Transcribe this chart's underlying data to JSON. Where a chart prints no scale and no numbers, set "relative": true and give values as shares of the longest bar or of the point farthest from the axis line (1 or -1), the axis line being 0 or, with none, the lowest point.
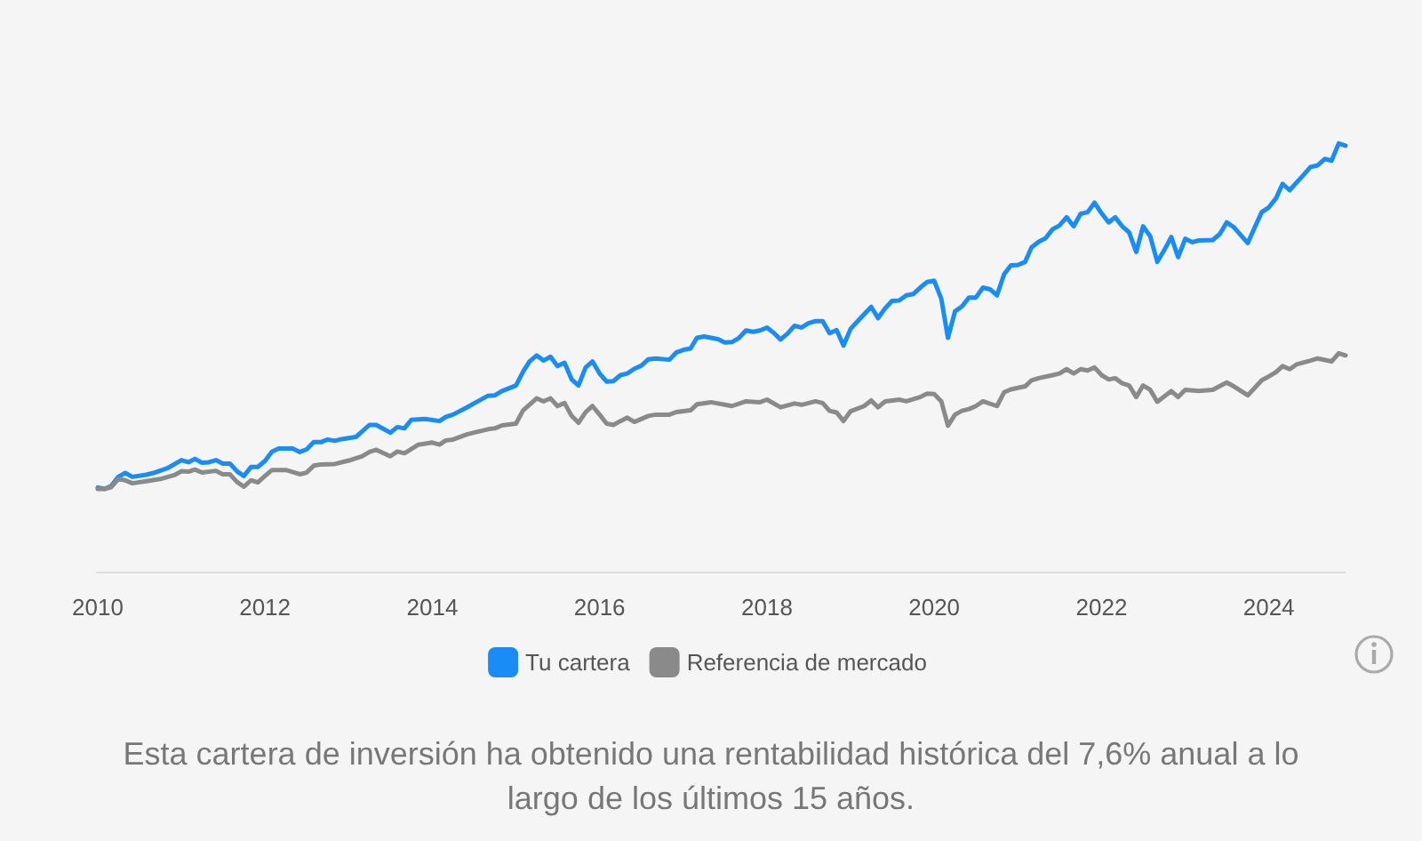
{
  "chart_data": {
    "type": "line",
    "relative": true,
    "xlim": [
      "2010-01",
      "2024-12"
    ],
    "xticks": [
      "2010",
      "2012",
      "2014",
      "2016",
      "2018",
      "2020",
      "2022",
      "2024"
    ],
    "legend": "bottom",
    "line_style": "solid",
    "annotations": [
      "Esta cartera de inversión ha obtenido una rentabilidad histórica del 7,6% anual a lo largo de los últimos 15 años."
    ],
    "series": [
      {
        "name": "Tu cartera",
        "color": "#1a8cf5",
        "x": [
          "2010-01",
          "2010-02",
          "2010-03",
          "2010-04",
          "2010-05",
          "2010-06",
          "2010-08",
          "2010-09",
          "2010-11",
          "2011-01",
          "2011-02",
          "2011-03",
          "2011-04",
          "2011-05",
          "2011-06",
          "2011-07",
          "2011-08",
          "2011-09",
          "2011-10",
          "2011-11",
          "2011-12",
          "2012-01",
          "2012-02",
          "2012-03",
          "2012-05",
          "2012-06",
          "2012-07",
          "2012-08",
          "2012-09",
          "2012-10",
          "2012-11",
          "2012-12",
          "2013-02",
          "2013-03",
          "2013-04",
          "2013-05",
          "2013-07",
          "2013-08",
          "2013-09",
          "2013-10",
          "2013-12",
          "2014-02",
          "2014-03",
          "2014-04",
          "2014-06",
          "2014-07",
          "2014-09",
          "2014-10",
          "2014-11",
          "2015-01",
          "2015-02",
          "2015-03",
          "2015-04",
          "2015-05",
          "2015-06",
          "2015-07",
          "2015-08",
          "2015-09",
          "2015-10",
          "2015-11",
          "2015-12",
          "2016-01",
          "2016-02",
          "2016-03",
          "2016-04",
          "2016-05",
          "2016-06",
          "2016-07",
          "2016-08",
          "2016-09",
          "2016-11",
          "2016-12",
          "2017-01",
          "2017-02",
          "2017-03",
          "2017-04",
          "2017-06",
          "2017-07",
          "2017-08",
          "2017-09",
          "2017-10",
          "2017-11",
          "2017-12",
          "2018-01",
          "2018-02",
          "2018-03",
          "2018-04",
          "2018-05",
          "2018-06",
          "2018-07",
          "2018-08",
          "2018-09",
          "2018-10",
          "2018-11",
          "2018-12",
          "2019-01",
          "2019-02",
          "2019-03",
          "2019-04",
          "2019-05",
          "2019-06",
          "2019-07",
          "2019-08",
          "2019-09",
          "2019-10",
          "2019-11",
          "2019-12",
          "2020-01",
          "2020-02",
          "2020-03",
          "2020-04",
          "2020-05",
          "2020-06",
          "2020-07",
          "2020-08",
          "2020-09",
          "2020-10",
          "2020-11",
          "2020-12",
          "2021-01",
          "2021-02",
          "2021-03",
          "2021-04",
          "2021-05",
          "2021-06",
          "2021-07",
          "2021-08",
          "2021-09",
          "2021-10",
          "2021-11",
          "2021-12",
          "2022-01",
          "2022-02",
          "2022-03",
          "2022-04",
          "2022-05",
          "2022-06",
          "2022-07",
          "2022-08",
          "2022-09",
          "2022-10",
          "2022-11",
          "2022-12",
          "2023-01",
          "2023-02",
          "2023-03",
          "2023-05",
          "2023-06",
          "2023-07",
          "2023-08",
          "2023-10",
          "2023-11",
          "2023-12",
          "2024-01",
          "2024-02",
          "2024-03",
          "2024-04",
          "2024-05",
          "2024-06",
          "2024-07",
          "2024-08",
          "2024-09",
          "2024-10",
          "2024-11",
          "2024-12"
        ],
        "values": [
          0.198,
          0.195,
          0.202,
          0.223,
          0.232,
          0.223,
          0.228,
          0.232,
          0.243,
          0.262,
          0.257,
          0.265,
          0.256,
          0.257,
          0.262,
          0.254,
          0.254,
          0.236,
          0.225,
          0.246,
          0.246,
          0.26,
          0.282,
          0.289,
          0.289,
          0.281,
          0.287,
          0.304,
          0.304,
          0.31,
          0.307,
          0.311,
          0.316,
          0.329,
          0.344,
          0.344,
          0.326,
          0.339,
          0.336,
          0.356,
          0.358,
          0.353,
          0.363,
          0.368,
          0.385,
          0.394,
          0.412,
          0.413,
          0.423,
          0.436,
          0.468,
          0.492,
          0.506,
          0.494,
          0.503,
          0.481,
          0.489,
          0.45,
          0.436,
          0.478,
          0.492,
          0.464,
          0.445,
          0.446,
          0.46,
          0.464,
          0.475,
          0.482,
          0.497,
          0.499,
          0.496,
          0.513,
          0.519,
          0.522,
          0.547,
          0.55,
          0.544,
          0.536,
          0.537,
          0.547,
          0.564,
          0.561,
          0.564,
          0.571,
          0.558,
          0.543,
          0.557,
          0.575,
          0.571,
          0.581,
          0.586,
          0.586,
          0.558,
          0.565,
          0.529,
          0.568,
          0.586,
          0.602,
          0.619,
          0.593,
          0.616,
          0.633,
          0.634,
          0.646,
          0.649,
          0.664,
          0.677,
          0.68,
          0.638,
          0.547,
          0.609,
          0.62,
          0.641,
          0.641,
          0.664,
          0.66,
          0.646,
          0.695,
          0.716,
          0.717,
          0.724,
          0.758,
          0.771,
          0.779,
          0.8,
          0.809,
          0.828,
          0.807,
          0.836,
          0.84,
          0.862,
          0.837,
          0.816,
          0.828,
          0.807,
          0.793,
          0.747,
          0.807,
          0.784,
          0.724,
          0.751,
          0.782,
          0.735,
          0.778,
          0.77,
          0.774,
          0.775,
          0.789,
          0.816,
          0.805,
          0.768,
          0.805,
          0.84,
          0.851,
          0.872,
          0.906,
          0.891,
          0.909,
          0.927,
          0.945,
          0.949,
          0.964,
          0.96,
          1,
          0.995
        ]
      },
      {
        "name": "Referencia de mercado",
        "color": "#8a8a8a",
        "x": [
          "2010-01",
          "2010-02",
          "2010-03",
          "2010-04",
          "2010-05",
          "2010-06",
          "2010-08",
          "2010-10",
          "2010-12",
          "2011-01",
          "2011-02",
          "2011-03",
          "2011-04",
          "2011-06",
          "2011-07",
          "2011-08",
          "2011-09",
          "2011-10",
          "2011-11",
          "2011-12",
          "2012-01",
          "2012-02",
          "2012-04",
          "2012-06",
          "2012-07",
          "2012-08",
          "2012-09",
          "2012-11",
          "2013-01",
          "2013-03",
          "2013-04",
          "2013-05",
          "2013-07",
          "2013-08",
          "2013-09",
          "2013-11",
          "2014-01",
          "2014-02",
          "2014-03",
          "2014-04",
          "2014-06",
          "2014-07",
          "2014-09",
          "2014-10",
          "2014-11",
          "2015-01",
          "2015-02",
          "2015-04",
          "2015-05",
          "2015-06",
          "2015-07",
          "2015-08",
          "2015-09",
          "2015-10",
          "2015-11",
          "2015-12",
          "2016-01",
          "2016-02",
          "2016-03",
          "2016-04",
          "2016-05",
          "2016-06",
          "2016-08",
          "2016-09",
          "2016-11",
          "2016-12",
          "2017-02",
          "2017-03",
          "2017-05",
          "2017-07",
          "2017-08",
          "2017-10",
          "2017-12",
          "2018-01",
          "2018-03",
          "2018-05",
          "2018-06",
          "2018-08",
          "2018-09",
          "2018-10",
          "2018-11",
          "2018-12",
          "2019-01",
          "2019-03",
          "2019-04",
          "2019-05",
          "2019-06",
          "2019-08",
          "2019-09",
          "2019-11",
          "2019-12",
          "2020-01",
          "2020-02",
          "2020-03",
          "2020-04",
          "2020-05",
          "2020-06",
          "2020-07",
          "2020-08",
          "2020-10",
          "2020-11",
          "2020-12",
          "2021-02",
          "2021-03",
          "2021-04",
          "2021-06",
          "2021-07",
          "2021-08",
          "2021-09",
          "2021-10",
          "2021-11",
          "2021-12",
          "2022-01",
          "2022-02",
          "2022-03",
          "2022-04",
          "2022-05",
          "2022-06",
          "2022-07",
          "2022-08",
          "2022-09",
          "2022-11",
          "2022-12",
          "2023-01",
          "2023-03",
          "2023-05",
          "2023-07",
          "2023-08",
          "2023-10",
          "2023-12",
          "2024-01",
          "2024-02",
          "2024-03",
          "2024-04",
          "2024-05",
          "2024-07",
          "2024-08",
          "2024-10",
          "2024-11",
          "2024-12"
        ],
        "values": [
          0.195,
          0.195,
          0.199,
          0.218,
          0.215,
          0.208,
          0.213,
          0.218,
          0.227,
          0.236,
          0.235,
          0.24,
          0.233,
          0.237,
          0.229,
          0.229,
          0.211,
          0.2,
          0.215,
          0.21,
          0.225,
          0.239,
          0.239,
          0.229,
          0.233,
          0.249,
          0.252,
          0.253,
          0.261,
          0.271,
          0.281,
          0.286,
          0.271,
          0.282,
          0.278,
          0.298,
          0.303,
          0.298,
          0.308,
          0.31,
          0.322,
          0.326,
          0.334,
          0.336,
          0.343,
          0.347,
          0.378,
          0.406,
          0.399,
          0.406,
          0.388,
          0.395,
          0.365,
          0.349,
          0.374,
          0.388,
          0.368,
          0.347,
          0.344,
          0.353,
          0.361,
          0.351,
          0.365,
          0.368,
          0.368,
          0.374,
          0.378,
          0.392,
          0.397,
          0.391,
          0.388,
          0.399,
          0.397,
          0.403,
          0.385,
          0.394,
          0.391,
          0.399,
          0.395,
          0.377,
          0.373,
          0.353,
          0.376,
          0.388,
          0.401,
          0.385,
          0.399,
          0.403,
          0.399,
          0.409,
          0.417,
          0.416,
          0.399,
          0.342,
          0.368,
          0.377,
          0.381,
          0.388,
          0.399,
          0.388,
          0.42,
          0.427,
          0.434,
          0.448,
          0.453,
          0.46,
          0.464,
          0.474,
          0.464,
          0.474,
          0.471,
          0.478,
          0.46,
          0.45,
          0.453,
          0.441,
          0.436,
          0.409,
          0.436,
          0.426,
          0.398,
          0.423,
          0.409,
          0.426,
          0.423,
          0.426,
          0.443,
          0.434,
          0.413,
          0.448,
          0.457,
          0.467,
          0.481,
          0.474,
          0.485,
          0.494,
          0.499,
          0.492,
          0.511,
          0.506
        ]
      }
    ]
  }
}
